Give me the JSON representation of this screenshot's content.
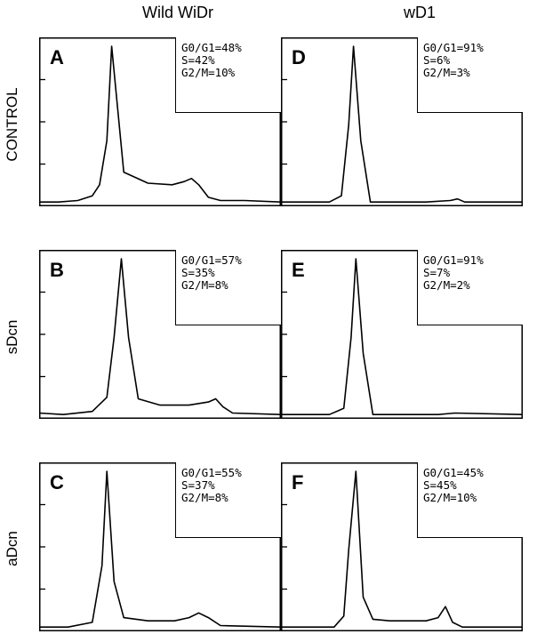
{
  "columns": [
    "Wild  WiDr",
    "wD1"
  ],
  "rows": [
    "CONTROL",
    "sDcn",
    "aDcn"
  ],
  "chart_data": [
    {
      "type": "line",
      "panel": "A",
      "column": "Wild  WiDr",
      "row": "CONTROL",
      "stats": [
        "G0/G1=48%",
        "S=42%",
        "G2/M=10%"
      ],
      "x": [
        0,
        0.08,
        0.16,
        0.22,
        0.25,
        0.28,
        0.3,
        0.35,
        0.45,
        0.55,
        0.6,
        0.63,
        0.66,
        0.7,
        0.75,
        0.85,
        1
      ],
      "y": [
        0.01,
        0.01,
        0.02,
        0.05,
        0.12,
        0.4,
        1.0,
        0.2,
        0.13,
        0.12,
        0.14,
        0.16,
        0.12,
        0.04,
        0.02,
        0.02,
        0.01
      ]
    },
    {
      "type": "line",
      "panel": "B",
      "column": "Wild  WiDr",
      "row": "sDcn",
      "stats": [
        "G0/G1=57%",
        "S=35%",
        "G2/M=8%"
      ],
      "x": [
        0,
        0.1,
        0.22,
        0.28,
        0.31,
        0.34,
        0.37,
        0.41,
        0.5,
        0.62,
        0.7,
        0.73,
        0.76,
        0.8,
        1
      ],
      "y": [
        0.02,
        0.01,
        0.03,
        0.12,
        0.5,
        1.0,
        0.5,
        0.11,
        0.07,
        0.07,
        0.09,
        0.11,
        0.06,
        0.02,
        0.01
      ]
    },
    {
      "type": "line",
      "panel": "C",
      "column": "Wild  WiDr",
      "row": "aDcn",
      "stats": [
        "G0/G1=55%",
        "S=37%",
        "G2/M=8%"
      ],
      "x": [
        0,
        0.12,
        0.22,
        0.26,
        0.28,
        0.31,
        0.35,
        0.45,
        0.56,
        0.62,
        0.66,
        0.7,
        0.75,
        1
      ],
      "y": [
        0.01,
        0.01,
        0.04,
        0.4,
        1.0,
        0.3,
        0.07,
        0.05,
        0.05,
        0.07,
        0.1,
        0.07,
        0.02,
        0.01
      ]
    },
    {
      "type": "line",
      "panel": "D",
      "column": "wD1",
      "row": "CONTROL",
      "stats": [
        "G0/G1=91%",
        "S=6%",
        "G2/M=3%"
      ],
      "x": [
        0,
        0.2,
        0.25,
        0.28,
        0.3,
        0.33,
        0.37,
        0.6,
        0.7,
        0.73,
        0.76,
        1
      ],
      "y": [
        0.01,
        0.01,
        0.05,
        0.5,
        1.0,
        0.4,
        0.01,
        0.01,
        0.02,
        0.03,
        0.01,
        0.01
      ]
    },
    {
      "type": "line",
      "panel": "E",
      "column": "wD1",
      "row": "sDcn",
      "stats": [
        "G0/G1=91%",
        "S=7%",
        "G2/M=2%"
      ],
      "x": [
        0,
        0.2,
        0.26,
        0.29,
        0.31,
        0.34,
        0.38,
        0.65,
        0.72,
        1
      ],
      "y": [
        0.01,
        0.01,
        0.05,
        0.5,
        1.0,
        0.4,
        0.01,
        0.01,
        0.02,
        0.01
      ]
    },
    {
      "type": "line",
      "panel": "F",
      "column": "wD1",
      "row": "aDcn",
      "stats": [
        "G0/G1=45%",
        "S=45%",
        "G2/M=10%"
      ],
      "x": [
        0,
        0.22,
        0.26,
        0.28,
        0.31,
        0.34,
        0.38,
        0.45,
        0.55,
        0.6,
        0.65,
        0.68,
        0.71,
        0.75,
        1
      ],
      "y": [
        0.01,
        0.01,
        0.08,
        0.5,
        1.0,
        0.2,
        0.06,
        0.05,
        0.05,
        0.05,
        0.07,
        0.14,
        0.04,
        0.01,
        0.01
      ]
    }
  ]
}
